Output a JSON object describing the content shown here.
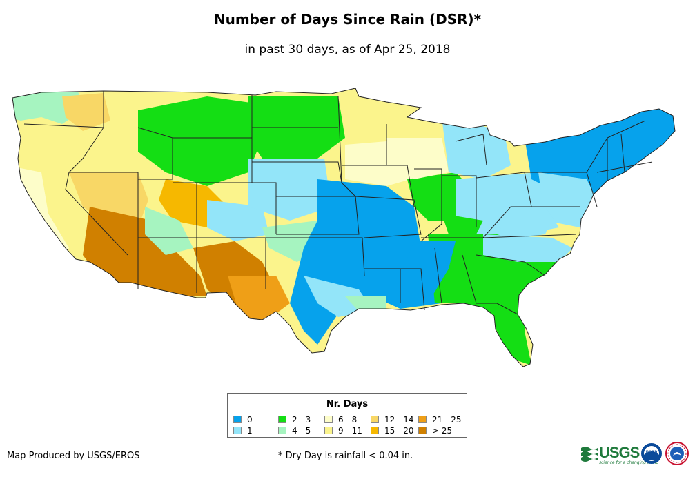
{
  "header": {
    "title": "Number of Days Since Rain (DSR)*",
    "subtitle": "in past 30 days, as of Apr 25, 2018"
  },
  "legend": {
    "title": "Nr. Days",
    "items": [
      {
        "label": "0",
        "color": "#06a2ec"
      },
      {
        "label": "1",
        "color": "#93e5f9"
      },
      {
        "label": "2 - 3",
        "color": "#14de14"
      },
      {
        "label": "4 - 5",
        "color": "#a6f4c0"
      },
      {
        "label": "6 - 8",
        "color": "#fdfdc9"
      },
      {
        "label": "9 - 11",
        "color": "#fbf48c"
      },
      {
        "label": "12 - 14",
        "color": "#f8d766"
      },
      {
        "label": "15 - 20",
        "color": "#f6b800"
      },
      {
        "label": "21 - 25",
        "color": "#ef9f17"
      },
      {
        "label": "> 25",
        "color": "#d08000"
      }
    ]
  },
  "footer": {
    "credit": "Map Produced by USGS/EROS",
    "footnote": "* Dry Day is rainfall < 0.04 in."
  },
  "logos": {
    "usgs": "USGS",
    "usgs_tagline": "science for a changing world",
    "noaa_icon": "noaa-logo-icon",
    "nws_icon": "national-weather-service-logo-icon"
  }
}
